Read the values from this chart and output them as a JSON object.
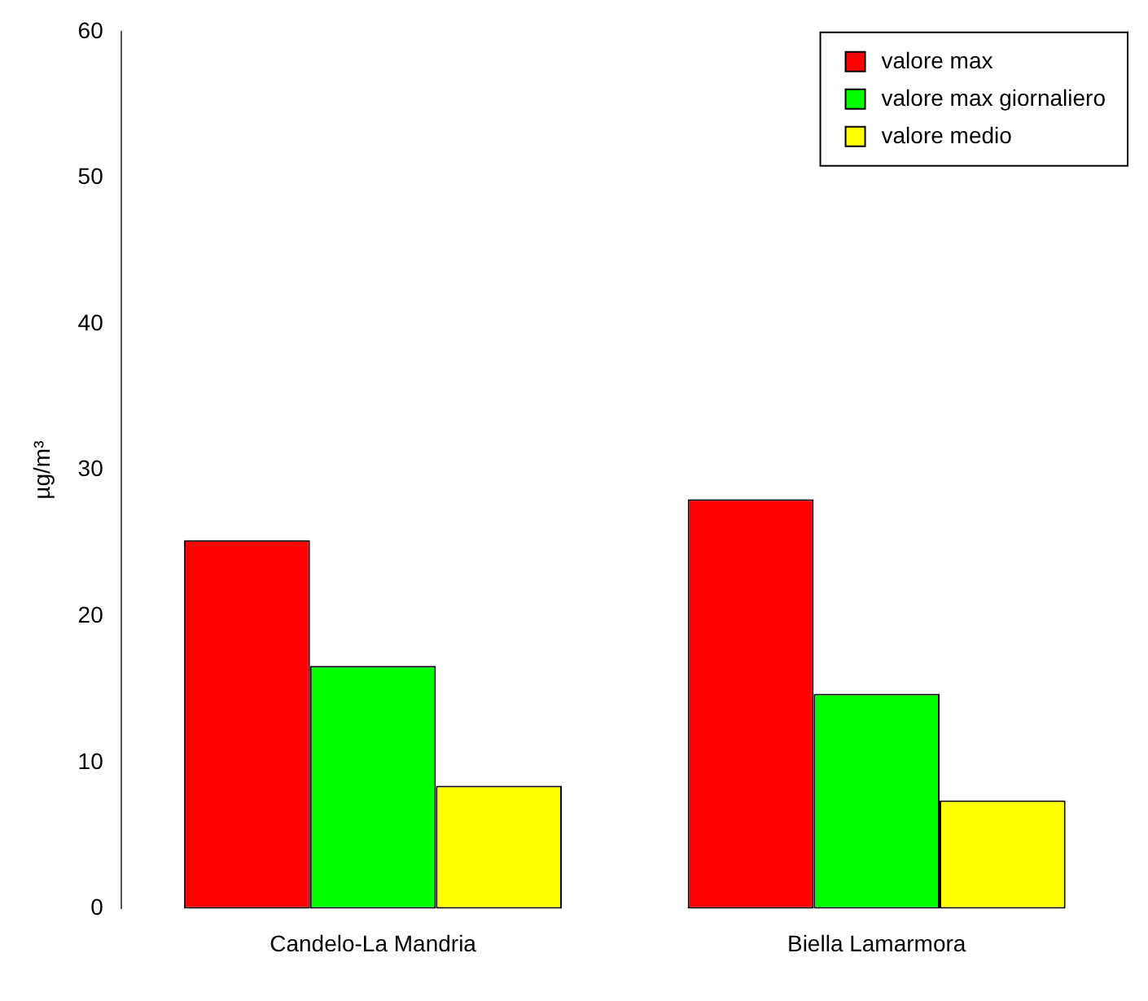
{
  "chart_data": {
    "type": "bar",
    "ylabel": "µg/m³",
    "categories": [
      "Candelo-La Mandria",
      "Biella Lamarmora"
    ],
    "series": [
      {
        "name": "valore max",
        "color": "#ff0000",
        "values": [
          25.2,
          28.0
        ]
      },
      {
        "name": "valore max giornaliero",
        "color": "#00ff00",
        "values": [
          16.6,
          14.7
        ]
      },
      {
        "name": "valore medio",
        "color": "#ffff00",
        "values": [
          8.4,
          7.4
        ]
      }
    ],
    "ylim": [
      0,
      60
    ],
    "yticks": [
      0,
      10,
      20,
      30,
      40,
      50,
      60
    ],
    "grid": false,
    "legend": "top right"
  }
}
